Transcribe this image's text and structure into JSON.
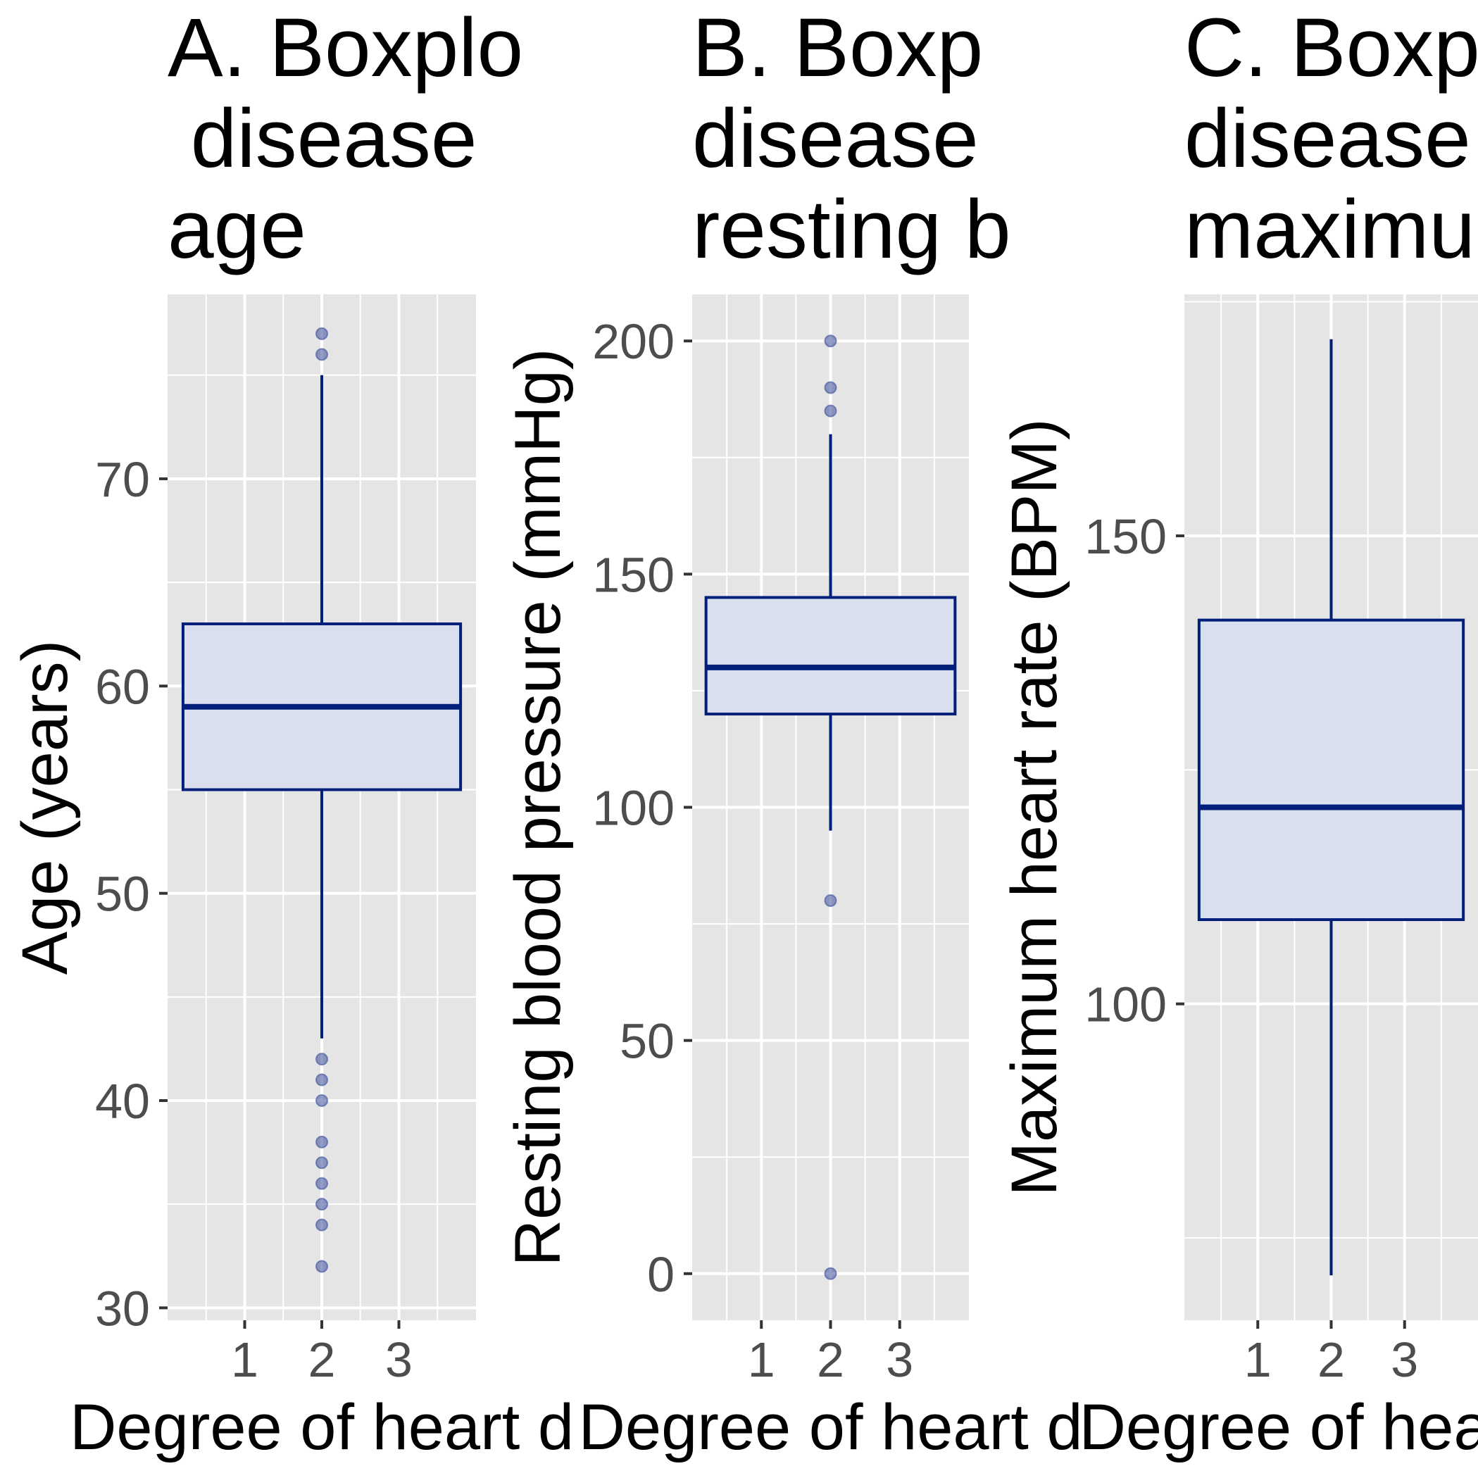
{
  "chart_data": [
    {
      "type": "box",
      "title_lines": [
        "A. Boxplo",
        " disease",
        "age"
      ],
      "xlabel": "Degree of heart d",
      "ylabel": "Age (years)",
      "x_ticks": [
        "1",
        "2",
        "3"
      ],
      "xlim": [
        0.0,
        4.0
      ],
      "ylim": [
        29.4,
        78.9
      ],
      "y_ticks": [
        30,
        40,
        50,
        60,
        70
      ],
      "box": {
        "x": 2,
        "q1": 55,
        "median": 59,
        "q3": 63,
        "whisker_low": 43,
        "whisker_high": 75,
        "half_width": 1.8
      },
      "outliers": [
        77,
        76,
        42,
        41,
        40,
        38,
        37,
        36,
        35,
        34,
        32
      ]
    },
    {
      "type": "box",
      "title_lines": [
        "B. Boxp",
        "disease",
        "resting b"
      ],
      "xlabel": "Degree of heart d",
      "ylabel": "Resting blood pressure (mmHg)",
      "x_ticks": [
        "1",
        "2",
        "3"
      ],
      "xlim": [
        0.0,
        4.0
      ],
      "ylim": [
        -10.0,
        210.0
      ],
      "y_ticks": [
        0,
        50,
        100,
        150,
        200
      ],
      "box": {
        "x": 2,
        "q1": 120,
        "median": 130,
        "q3": 145,
        "whisker_low": 95,
        "whisker_high": 180,
        "half_width": 1.8
      },
      "outliers": [
        200,
        190,
        185,
        80,
        0
      ]
    },
    {
      "type": "box",
      "title_lines": [
        "C. Boxp",
        "disease",
        "maximu"
      ],
      "xlabel": "Degree of heart d",
      "ylabel": "Maximum heart rate (BPM)",
      "x_ticks": [
        "1",
        "2",
        "3"
      ],
      "xlim": [
        0.0,
        4.0
      ],
      "ylim": [
        66.2,
        175.8
      ],
      "y_ticks": [
        100,
        150
      ],
      "box": {
        "x": 2,
        "q1": 109,
        "median": 121,
        "q3": 141,
        "whisker_low": 71,
        "whisker_high": 171,
        "half_width": 1.8
      },
      "outliers": []
    }
  ],
  "colors": {
    "panel_bg": "#e5e5e5",
    "grid": "#ffffff",
    "box_stroke": "#001f7a",
    "box_fill": "#dadff0",
    "outlier": "#3a4e9a"
  }
}
